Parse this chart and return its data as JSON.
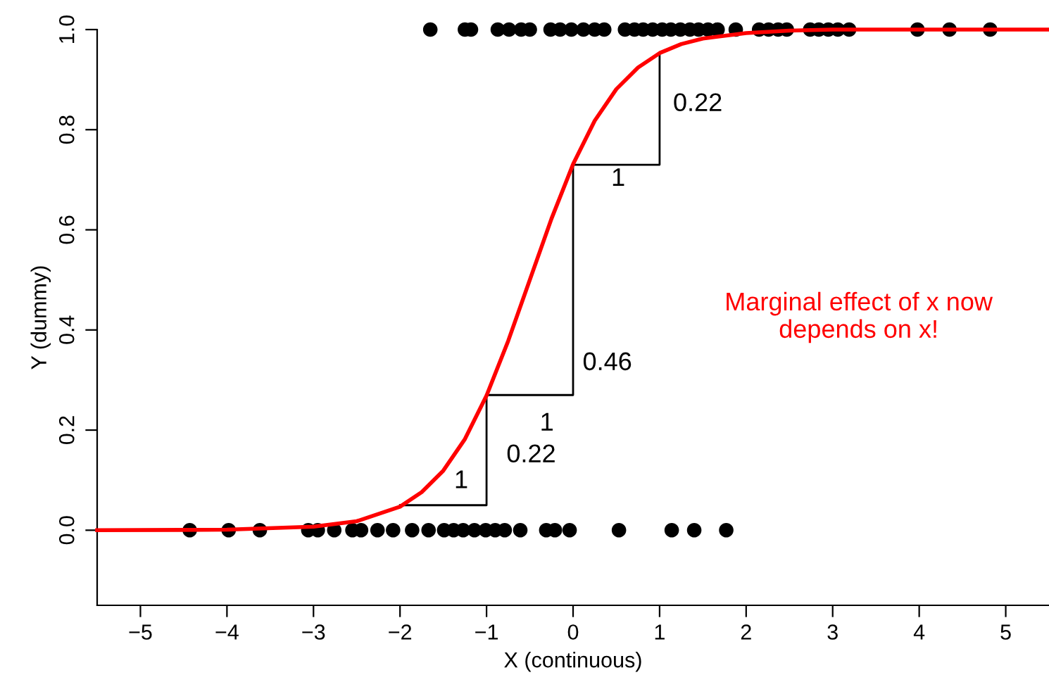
{
  "chart_data": {
    "type": "scatter",
    "xlabel": "X (continuous)",
    "ylabel": "Y (dummy)",
    "xlim": [
      -5.5,
      5.5
    ],
    "ylim": [
      -0.15,
      1.0
    ],
    "xticks": [
      {
        "value": -5,
        "label": "−5"
      },
      {
        "value": -4,
        "label": "−4"
      },
      {
        "value": -3,
        "label": "−3"
      },
      {
        "value": -2,
        "label": "−2"
      },
      {
        "value": -1,
        "label": "−1"
      },
      0,
      1,
      2,
      3,
      4,
      5
    ],
    "yticks": [
      {
        "value": 0,
        "label": "0.0"
      },
      0.2,
      0.4,
      0.6,
      0.8,
      {
        "value": 1,
        "label": "1.0"
      }
    ],
    "grid": false,
    "marker": "circle",
    "series": [
      {
        "color": "#000000",
        "x": [
          -4.43,
          -3.98,
          -3.62,
          -3.06,
          -2.95,
          -2.76,
          -2.55,
          -2.45,
          -2.26,
          -2.08,
          -1.86,
          -1.67,
          -1.49,
          -1.38,
          -1.27,
          -1.14,
          -1.01,
          -0.9,
          -0.79,
          -0.61,
          -0.31,
          -0.21,
          -0.04,
          0.53,
          1.14,
          1.4,
          1.77
        ],
        "values": [
          0,
          0,
          0,
          0,
          0,
          0,
          0,
          0,
          0,
          0,
          0,
          0,
          0,
          0,
          0,
          0,
          0,
          0,
          0,
          0,
          0,
          0,
          0,
          0,
          0,
          0,
          0
        ]
      },
      {
        "color": "#000000",
        "x": [
          -1.65,
          -1.25,
          -1.18,
          -0.87,
          -0.74,
          -0.6,
          -0.5,
          -0.26,
          -0.15,
          -0.02,
          0.12,
          0.25,
          0.36,
          0.6,
          0.71,
          0.81,
          0.92,
          1.03,
          1.13,
          1.24,
          1.35,
          1.45,
          1.56,
          1.67,
          1.88,
          2.15,
          2.26,
          2.37,
          2.47,
          2.74,
          2.84,
          2.95,
          3.06,
          3.19,
          3.98,
          4.35,
          4.82
        ],
        "values": [
          1,
          1,
          1,
          1,
          1,
          1,
          1,
          1,
          1,
          1,
          1,
          1,
          1,
          1,
          1,
          1,
          1,
          1,
          1,
          1,
          1,
          1,
          1,
          1,
          1,
          1,
          1,
          1,
          1,
          1,
          1,
          1,
          1,
          1,
          1,
          1,
          1
        ]
      },
      {
        "type": "line",
        "color": "#000000",
        "marker": "none",
        "x": [
          -2,
          -1,
          -1,
          0,
          0,
          1,
          1
        ],
        "values": [
          0.05,
          0.05,
          0.27,
          0.27,
          0.73,
          0.73,
          0.95
        ]
      },
      {
        "type": "line",
        "color": "#ff0000",
        "marker": "none",
        "x": [
          -5.5,
          -4,
          -3,
          -2.5,
          -2,
          -1.75,
          -1.5,
          -1.25,
          -1,
          -0.75,
          -0.5,
          -0.25,
          0,
          0.25,
          0.5,
          0.75,
          1,
          1.25,
          1.5,
          2,
          2.5,
          3,
          4,
          5.5
        ],
        "values": [
          0.0,
          0.001,
          0.007,
          0.018,
          0.047,
          0.076,
          0.119,
          0.182,
          0.269,
          0.378,
          0.5,
          0.622,
          0.731,
          0.818,
          0.881,
          0.924,
          0.953,
          0.971,
          0.982,
          0.993,
          0.998,
          1.0,
          1.0,
          1.0
        ]
      }
    ],
    "annotations": [
      "1",
      "0.22",
      "1",
      "0.46",
      "1",
      "0.22",
      "Marginal effect of x now\ndepends on x!"
    ]
  }
}
